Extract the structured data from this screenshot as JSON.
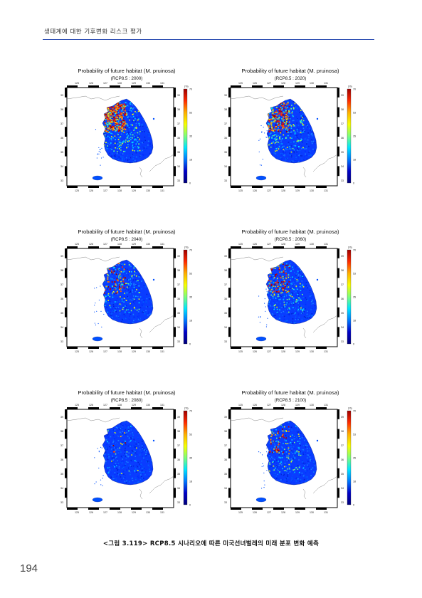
{
  "header": {
    "title": "생태계에 대한 기후변화 리스크 평가"
  },
  "panels": [
    {
      "title": "Probability of future habitat (M. pruinosa)",
      "subtitle": "(RCP8.5 : 2000)",
      "high_fraction": 0.85,
      "mid_fraction": 0.65
    },
    {
      "title": "Probability of future habitat (M. pruinosa)",
      "subtitle": "(RCP8.5 : 2020)",
      "high_fraction": 0.45,
      "mid_fraction": 0.6
    },
    {
      "title": "Probability of future habitat (M. pruinosa)",
      "subtitle": "(RCP8.5 : 2040)",
      "high_fraction": 0.15,
      "mid_fraction": 0.35
    },
    {
      "title": "Probability of future habitat (M. pruinosa)",
      "subtitle": "(RCP8.5 : 2060)",
      "high_fraction": 0.2,
      "mid_fraction": 0.4
    },
    {
      "title": "Probability of future habitat (M. pruinosa)",
      "subtitle": "(RCP8.5 : 2080)",
      "high_fraction": 0.02,
      "mid_fraction": 0.08
    },
    {
      "title": "Probability of future habitat (M. pruinosa)",
      "subtitle": "(RCP8.5 : 2100)",
      "high_fraction": 0.12,
      "mid_fraction": 0.3
    }
  ],
  "axis": {
    "lon_ticks": [
      "125",
      "126",
      "127",
      "128",
      "129",
      "130",
      "131"
    ],
    "lat_ticks": [
      "39",
      "38",
      "37",
      "36",
      "35",
      "34",
      "33"
    ]
  },
  "colorbar": {
    "unit": "(%)",
    "ticks": [
      "70",
      "53",
      "35",
      "18",
      "0"
    ],
    "colors": [
      "#9e0000",
      "#ff2a00",
      "#ffb000",
      "#f6ff00",
      "#7dff7a",
      "#00e5ff",
      "#0078ff",
      "#0000c8",
      "#00007a"
    ]
  },
  "caption": "<그림 3.119> RCP8.5 시나리오에 따른 미국선녀벌레의 미래 분포 변화 예측",
  "page_number": "194"
}
